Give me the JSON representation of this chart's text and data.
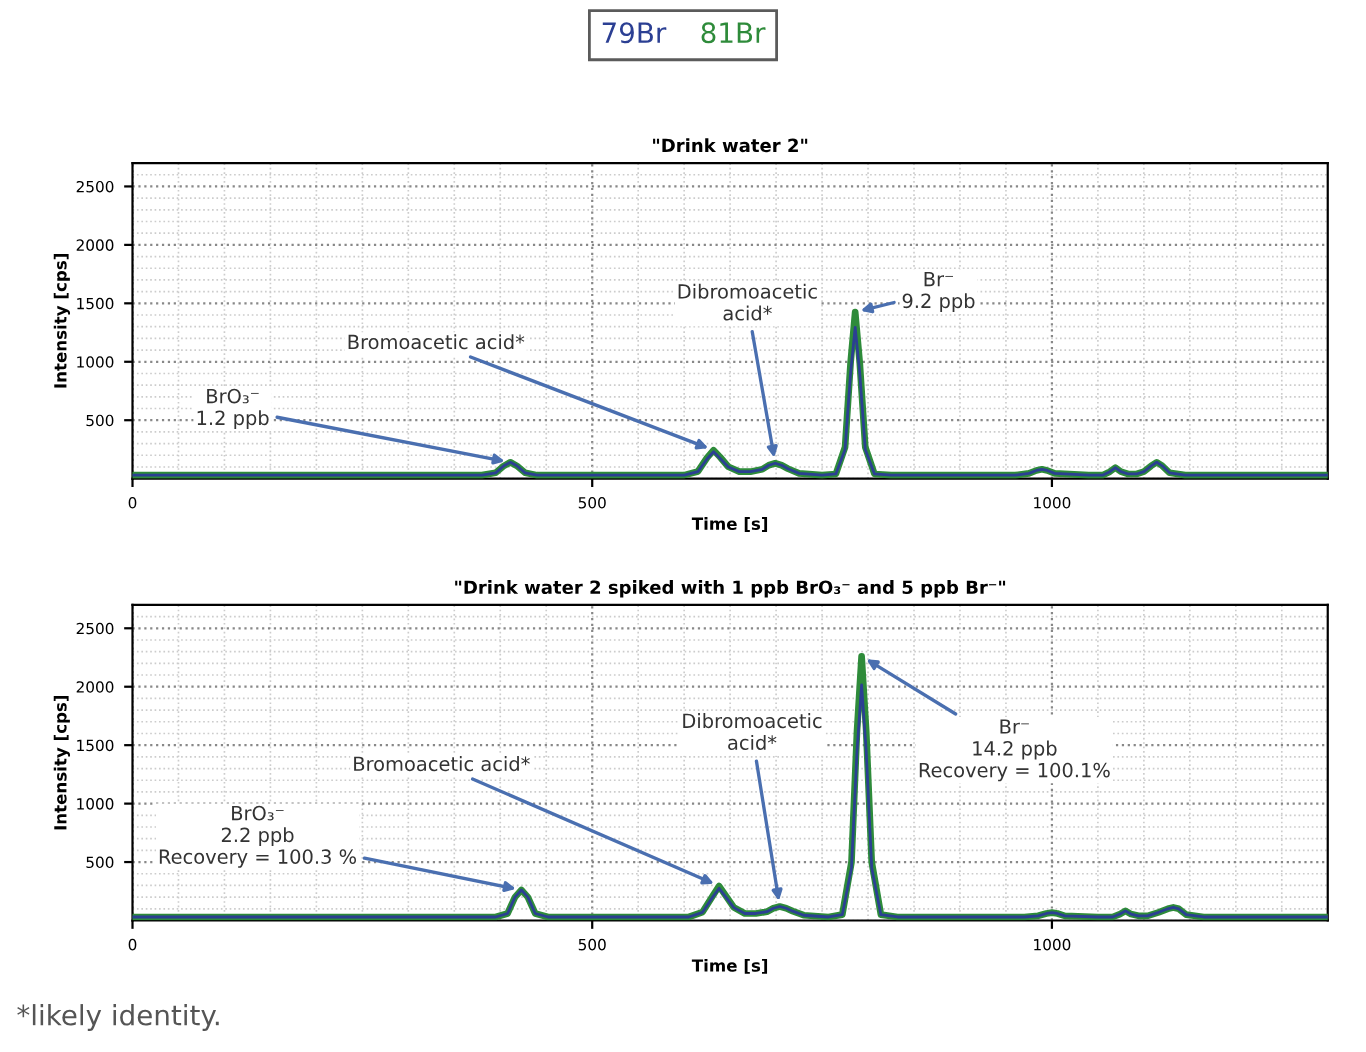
{
  "chart_data": [
    {
      "type": "line",
      "title": "\"Drink water 2\"",
      "xlabel": "Time [s]",
      "ylabel": "Intensity [cps]",
      "x": [
        0,
        100,
        200,
        380,
        395,
        404,
        411,
        418,
        427,
        440,
        600,
        615,
        625,
        632,
        639,
        648,
        660,
        672,
        685,
        692,
        699,
        706,
        713,
        725,
        750,
        765,
        775,
        781,
        786,
        791,
        797,
        807,
        825,
        960,
        975,
        983,
        989,
        995,
        1003,
        1040,
        1055,
        1063,
        1069,
        1075,
        1083,
        1092,
        1100,
        1108,
        1114,
        1120,
        1128,
        1145,
        1300
      ],
      "series": [
        {
          "name": "79Br",
          "color": "#2b3f93",
          "values": [
            30,
            30,
            30,
            30,
            50,
            110,
            140,
            110,
            50,
            30,
            30,
            60,
            170,
            230,
            175,
            100,
            60,
            60,
            80,
            115,
            132,
            115,
            85,
            45,
            30,
            40,
            250,
            900,
            1294,
            900,
            250,
            40,
            30,
            30,
            45,
            70,
            80,
            70,
            45,
            30,
            30,
            60,
            95,
            60,
            40,
            40,
            60,
            110,
            140,
            110,
            50,
            30,
            30
          ]
        },
        {
          "name": "81Br",
          "color": "#2e8b3a",
          "values": [
            30,
            30,
            30,
            30,
            50,
            110,
            140,
            110,
            50,
            30,
            30,
            62,
            180,
            243,
            185,
            102,
            60,
            60,
            80,
            115,
            132,
            115,
            85,
            45,
            30,
            40,
            270,
            990,
            1426,
            990,
            270,
            40,
            30,
            30,
            45,
            70,
            80,
            70,
            45,
            30,
            30,
            60,
            95,
            60,
            40,
            40,
            60,
            110,
            140,
            110,
            50,
            30,
            30
          ]
        }
      ],
      "xlim": [
        0,
        1300
      ],
      "ylim": [
        0,
        2700
      ],
      "xticks": [
        0,
        500,
        1000
      ],
      "yticks": [
        500,
        1000,
        1500,
        2000,
        2500
      ],
      "grid": true,
      "legend": "top",
      "line_style": "solid",
      "marker": "none",
      "annotations": [
        {
          "text": "BrO₃⁻\n1.2 ppb",
          "x": 411,
          "y": 140
        },
        {
          "text": "Bromoacetic acid*",
          "x": 632,
          "y": 243
        },
        {
          "text": "Dibromoacetic\nacid*",
          "x": 699,
          "y": 132
        },
        {
          "text": "Br⁻\n9.2 ppb",
          "x": 786,
          "y": 1426
        }
      ]
    },
    {
      "type": "line",
      "title": "\"Drink water 2 spiked with 1 ppb BrO₃⁻ and 5 ppb Br⁻\"",
      "xlabel": "Time [s]",
      "ylabel": "Intensity [cps]",
      "x": [
        0,
        100,
        200,
        395,
        408,
        416,
        423,
        430,
        438,
        452,
        605,
        620,
        631,
        638,
        645,
        654,
        666,
        678,
        690,
        697,
        704,
        711,
        718,
        730,
        757,
        772,
        782,
        788,
        793,
        798,
        804,
        814,
        832,
        970,
        985,
        994,
        1000,
        1006,
        1014,
        1050,
        1066,
        1074,
        1080,
        1086,
        1094,
        1104,
        1116,
        1126,
        1132,
        1138,
        1146,
        1165,
        1300
      ],
      "series": [
        {
          "color": "#2b3f93",
          "values": [
            30,
            30,
            30,
            30,
            60,
            200,
            261,
            200,
            60,
            30,
            30,
            70,
            200,
            276,
            205,
            110,
            60,
            60,
            75,
            105,
            120,
            105,
            80,
            45,
            30,
            50,
            450,
            1450,
            2015,
            1450,
            450,
            50,
            30,
            30,
            40,
            60,
            67,
            60,
            40,
            30,
            30,
            55,
            82,
            55,
            40,
            40,
            70,
            100,
            112,
            100,
            50,
            30,
            30
          ]
        },
        {
          "color": "#2e8b3a",
          "values": [
            30,
            30,
            30,
            30,
            60,
            200,
            261,
            200,
            60,
            30,
            30,
            72,
            210,
            295,
            215,
            112,
            60,
            60,
            75,
            105,
            120,
            105,
            80,
            45,
            30,
            50,
            500,
            1620,
            2261,
            1620,
            500,
            50,
            30,
            30,
            40,
            60,
            67,
            60,
            40,
            30,
            30,
            55,
            82,
            55,
            40,
            40,
            70,
            100,
            112,
            100,
            50,
            30,
            30
          ]
        }
      ],
      "xlim": [
        0,
        1300
      ],
      "ylim": [
        0,
        2700
      ],
      "xticks": [
        0,
        500,
        1000
      ],
      "yticks": [
        500,
        1000,
        1500,
        2000,
        2500
      ],
      "grid": true,
      "line_style": "solid",
      "marker": "none",
      "annotations": [
        {
          "text": "BrO₃⁻\n2.2 ppb\nRecovery = 100.3 %",
          "x": 423,
          "y": 261
        },
        {
          "text": "Bromoacetic acid*",
          "x": 638,
          "y": 295
        },
        {
          "text": "Dibromoacetic\nacid*",
          "x": 704,
          "y": 120
        },
        {
          "text": "Br⁻\n14.2 ppb\nRecovery = 100.1%",
          "x": 793,
          "y": 2261
        },
        "*likely identity."
      ]
    }
  ]
}
